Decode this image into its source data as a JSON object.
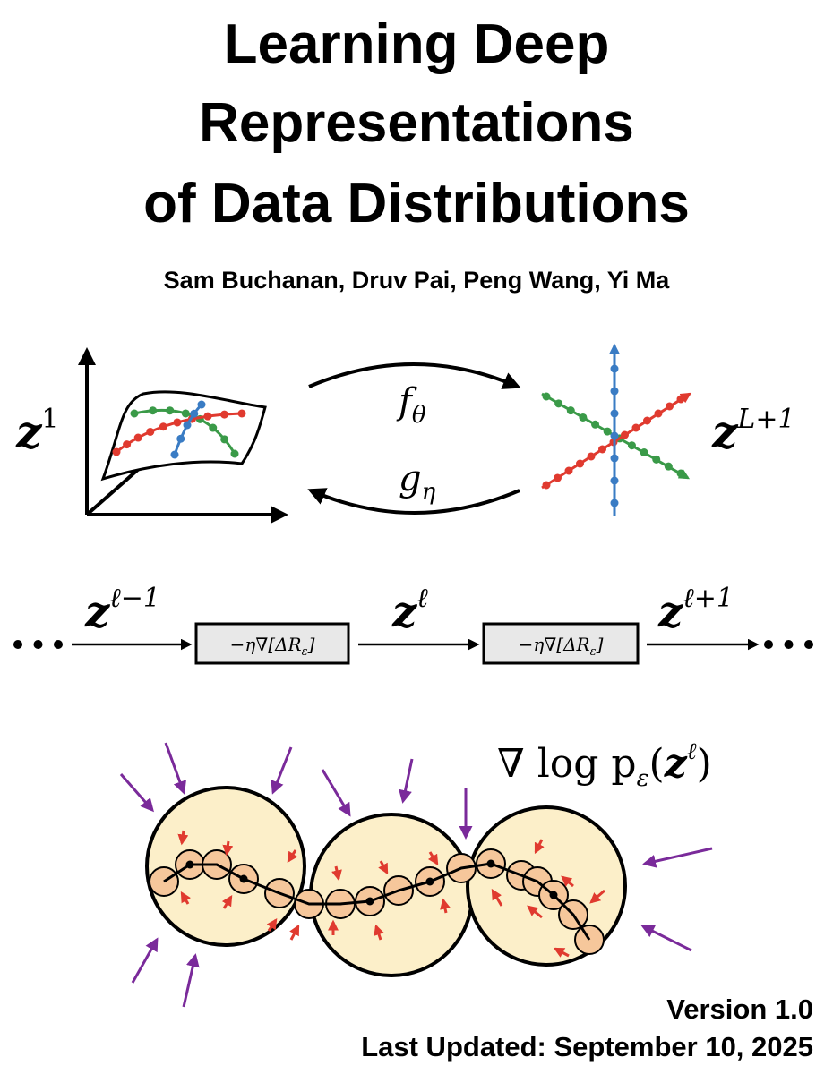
{
  "title": [
    "Learning Deep",
    "Representations",
    "of Data Distributions"
  ],
  "authors": "Sam Buchanan, Druv Pai, Peng Wang, Yi Ma",
  "figure": {
    "input": {
      "base": "z",
      "sup": "1"
    },
    "encoder": {
      "base": "f",
      "sub": "θ"
    },
    "decoder": {
      "base": "g",
      "sub": "η"
    },
    "output": {
      "base": "z",
      "sup": "L+1"
    }
  },
  "layers": {
    "previous": {
      "base": "z",
      "sup": "ℓ−1"
    },
    "current": {
      "base": "z",
      "sup": "ℓ"
    },
    "next": {
      "base": "z",
      "sup": "ℓ+1"
    },
    "operators": [
      {
        "text": "−η∇[ΔR",
        "sub": "ε",
        "close": "]"
      },
      {
        "text": "−η∇[ΔR",
        "sub": "ε",
        "close": "]"
      }
    ]
  },
  "score": {
    "text": "∇ log p",
    "sub": "ε",
    "open": "(",
    "base": "z",
    "sup": "ℓ",
    "close": ")"
  },
  "version": "Version 1.0",
  "updated": "Last Updated: September 10, 2025"
}
